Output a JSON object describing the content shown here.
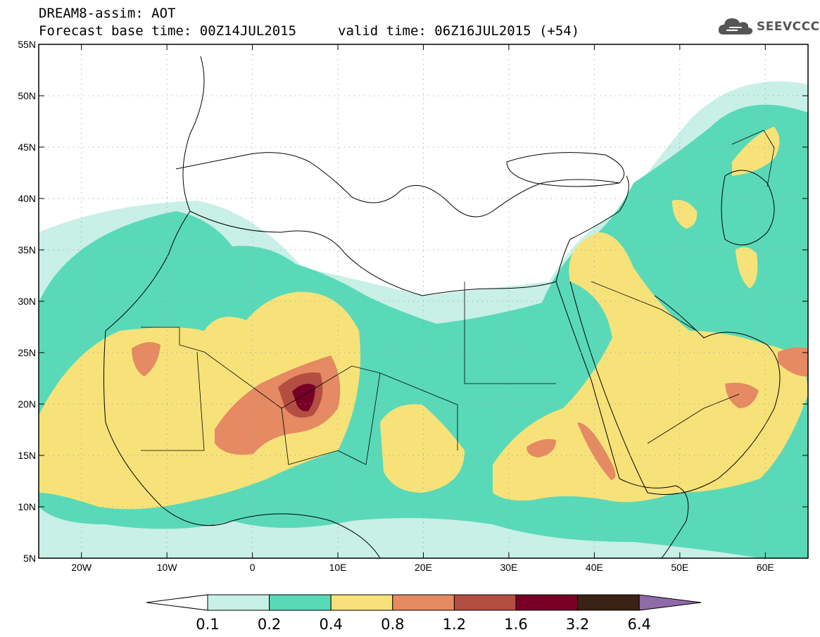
{
  "header": {
    "title": "DREAM8-assim: AOT",
    "base_time": "Forecast base time: 00Z14JUL2015",
    "valid_time": "valid time: 06Z16JUL2015 (+54)"
  },
  "logo": {
    "icon": "cloud-icon",
    "text": "SEEVCCC",
    "color": "#555555"
  },
  "map": {
    "lon_range": [
      -25,
      65
    ],
    "lat_range": [
      5,
      55
    ],
    "lat_ticks": [
      "55N",
      "50N",
      "45N",
      "40N",
      "35N",
      "30N",
      "25N",
      "20N",
      "15N",
      "10N",
      "5N"
    ],
    "lon_ticks": [
      "20W",
      "10W",
      "0",
      "10E",
      "20E",
      "30E",
      "40E",
      "50E",
      "60E"
    ],
    "grid": "dotted"
  },
  "colorbar": {
    "labels": [
      "0.1",
      "0.2",
      "0.4",
      "0.8",
      "1.2",
      "1.6",
      "3.2",
      "6.4"
    ],
    "colors": [
      "#ffffff",
      "#c8f0e6",
      "#5ad9b8",
      "#f7e27a",
      "#e58a62",
      "#b44d42",
      "#780026",
      "#3a2214",
      "#8f6aa8"
    ]
  }
}
